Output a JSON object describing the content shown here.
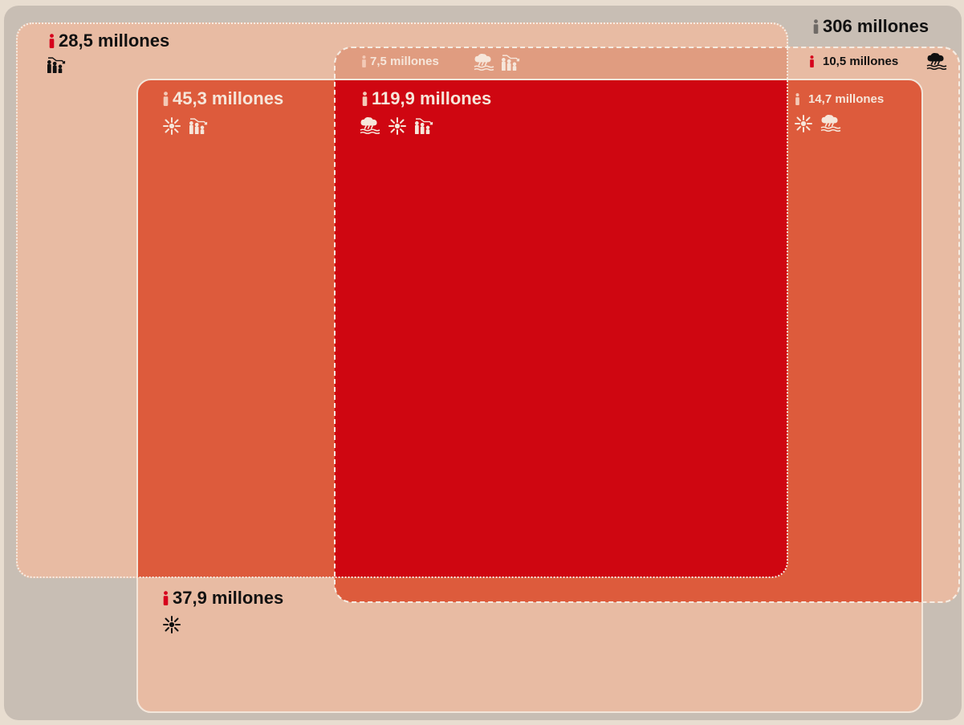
{
  "colors": {
    "page_bg": "#e8ddd0",
    "total_bg": "#c8beb4",
    "light_region": "#e8bba3",
    "mid_region": "#dd5b3c",
    "core_region": "#cf0611",
    "top_band": "#e09c80",
    "text_light": "#f3e3d6",
    "text_dark": "#111111",
    "accent_red": "#d6001c",
    "person_grey": "#6f6a66"
  },
  "legend_icons": {
    "flood": "flood-rain-icon",
    "heat": "heat-burst-icon",
    "poverty": "people-decline-icon"
  },
  "total": {
    "label": "306 millones",
    "person_icon": "person-icon-grey"
  },
  "regions": {
    "poverty_only": {
      "label": "28,5 millones",
      "icons": [
        "people-decline-icon"
      ]
    },
    "flood_poverty": {
      "label": "7,5 millones",
      "icons": [
        "flood-rain-icon",
        "people-decline-icon"
      ]
    },
    "flood_only": {
      "label": "10,5 millones",
      "icons": [
        "flood-rain-icon"
      ]
    },
    "heat_poverty": {
      "label": "45,3 millones",
      "icons": [
        "heat-burst-icon",
        "people-decline-icon"
      ]
    },
    "all_three": {
      "label": "119,9 millones",
      "icons": [
        "flood-rain-icon",
        "heat-burst-icon",
        "people-decline-icon"
      ]
    },
    "heat_flood": {
      "label": "14,7 millones",
      "icons": [
        "heat-burst-icon",
        "flood-rain-icon"
      ]
    },
    "heat_only": {
      "label": "37,9 millones",
      "icons": [
        "heat-burst-icon"
      ]
    }
  }
}
